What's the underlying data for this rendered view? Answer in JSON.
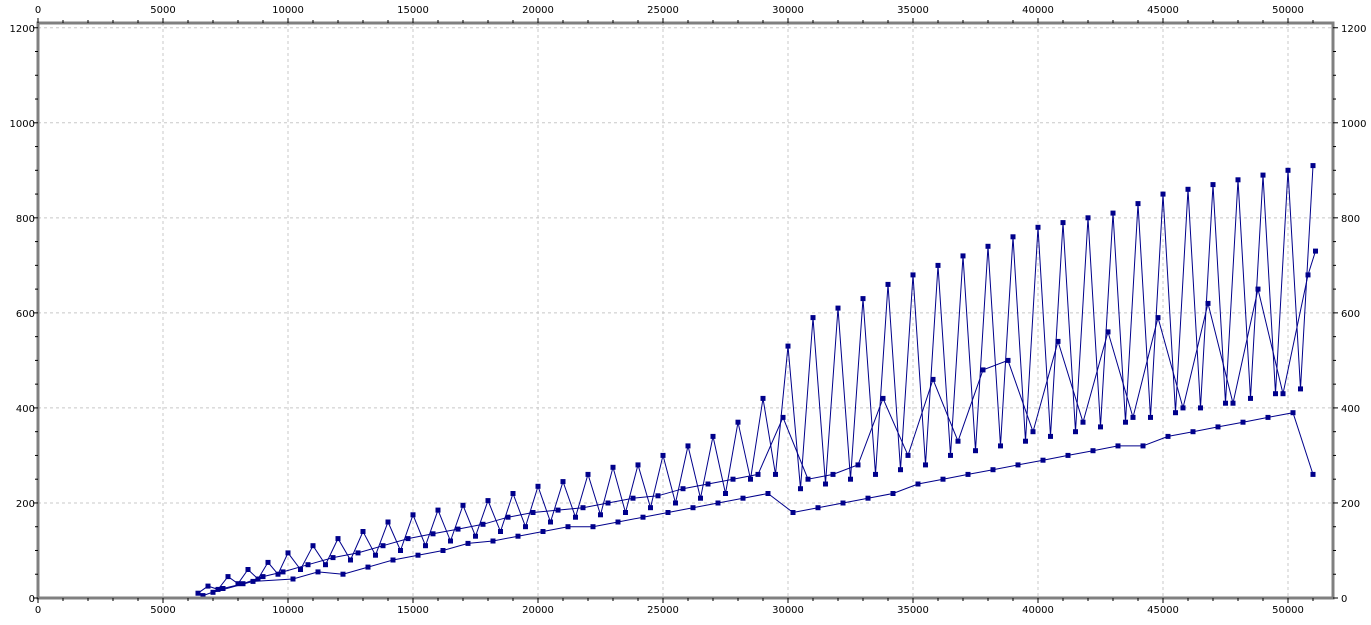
{
  "colors": {
    "background": "#ffffff",
    "frame": "#808080",
    "grid": "#c8c8c8",
    "series": "#00008b"
  },
  "chart_data": {
    "type": "line",
    "title": "",
    "xlabel": "",
    "ylabel": "",
    "grid": true,
    "legend": "none",
    "xlim": [
      0,
      51800
    ],
    "ylim": [
      0,
      1210
    ],
    "x_ticks": [
      0,
      5000,
      10000,
      15000,
      20000,
      25000,
      30000,
      35000,
      40000,
      45000,
      50000
    ],
    "y_ticks": [
      0,
      200,
      400,
      600,
      800,
      1000,
      1200
    ],
    "x_tick_labels": [
      "0",
      "5000",
      "10000",
      "15000",
      "20000",
      "25000",
      "30000",
      "35000",
      "40000",
      "45000",
      "50000"
    ],
    "y_tick_labels": [
      "0",
      "200",
      "400",
      "600",
      "800",
      "1000",
      "1200"
    ],
    "series": [
      {
        "marker": "square",
        "x": [
          6400,
          6800,
          7200,
          7600,
          8000,
          8400,
          8800,
          9200,
          9600,
          10000,
          10500,
          11000,
          11500,
          12000,
          12500,
          13000,
          13500,
          14000,
          14500,
          15000,
          15500,
          16000,
          16500,
          17000,
          17500,
          18000,
          18500,
          19000,
          19500,
          20000,
          20500,
          21000,
          21500,
          22000,
          22500,
          23000,
          23500,
          24000,
          24500,
          25000,
          25500,
          26000,
          26500,
          27000,
          27500,
          28000,
          28500,
          29000,
          29500,
          30000,
          30500,
          31000,
          31500,
          32000,
          32500,
          33000,
          33500,
          34000,
          34500,
          35000,
          35500,
          36000,
          36500,
          37000,
          37500,
          38000,
          38500,
          39000,
          39500,
          40000,
          40500,
          41000,
          41500,
          42000,
          42500,
          43000,
          43500,
          44000,
          44500,
          45000,
          45500,
          46000,
          46500,
          47000,
          47500,
          48000,
          48500,
          49000,
          49500,
          50000,
          50500,
          51000
        ],
        "y": [
          10,
          25,
          18,
          45,
          30,
          60,
          40,
          75,
          50,
          95,
          60,
          110,
          70,
          125,
          80,
          140,
          90,
          160,
          100,
          175,
          110,
          185,
          120,
          195,
          130,
          205,
          140,
          220,
          150,
          235,
          160,
          245,
          170,
          260,
          175,
          275,
          180,
          280,
          190,
          300,
          200,
          320,
          210,
          340,
          220,
          370,
          250,
          420,
          260,
          530,
          230,
          590,
          240,
          610,
          250,
          630,
          260,
          660,
          270,
          680,
          280,
          700,
          300,
          720,
          310,
          740,
          320,
          760,
          330,
          780,
          340,
          790,
          350,
          800,
          360,
          810,
          370,
          830,
          380,
          850,
          390,
          860,
          400,
          870,
          410,
          880,
          420,
          890,
          430,
          900,
          440,
          910
        ]
      },
      {
        "marker": "square",
        "x": [
          6600,
          7400,
          8200,
          9000,
          9800,
          10800,
          11800,
          12800,
          13800,
          14800,
          15800,
          16800,
          17800,
          18800,
          19800,
          20800,
          21800,
          22800,
          23800,
          24800,
          25800,
          26800,
          27800,
          28800,
          29800,
          30800,
          31800,
          32800,
          33800,
          34800,
          35800,
          36800,
          37800,
          38800,
          39800,
          40800,
          41800,
          42800,
          43800,
          44800,
          45800,
          46800,
          47800,
          48800,
          49800,
          50800,
          51100
        ],
        "y": [
          5,
          20,
          30,
          45,
          55,
          70,
          85,
          95,
          110,
          125,
          135,
          145,
          155,
          170,
          180,
          185,
          190,
          200,
          210,
          215,
          230,
          240,
          250,
          260,
          380,
          250,
          260,
          280,
          420,
          300,
          460,
          330,
          480,
          500,
          350,
          540,
          370,
          560,
          380,
          590,
          400,
          620,
          410,
          650,
          430,
          680,
          730
        ]
      },
      {
        "marker": "square",
        "x": [
          7000,
          8600,
          10200,
          11200,
          12200,
          13200,
          14200,
          15200,
          16200,
          17200,
          18200,
          19200,
          20200,
          21200,
          22200,
          23200,
          24200,
          25200,
          26200,
          27200,
          28200,
          29200,
          30200,
          31200,
          32200,
          33200,
          34200,
          35200,
          36200,
          37200,
          38200,
          39200,
          40200,
          41200,
          42200,
          43200,
          44200,
          45200,
          46200,
          47200,
          48200,
          49200,
          50200,
          51000
        ],
        "y": [
          12,
          35,
          40,
          55,
          50,
          65,
          80,
          90,
          100,
          115,
          120,
          130,
          140,
          150,
          150,
          160,
          170,
          180,
          190,
          200,
          210,
          220,
          180,
          190,
          200,
          210,
          220,
          240,
          250,
          260,
          270,
          280,
          290,
          300,
          310,
          320,
          320,
          340,
          350,
          360,
          370,
          380,
          390,
          260
        ]
      }
    ]
  }
}
